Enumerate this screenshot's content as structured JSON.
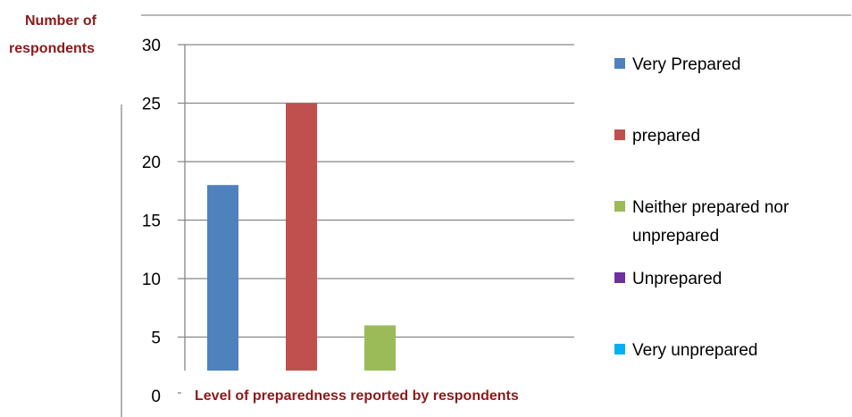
{
  "chart_data": {
    "type": "bar",
    "ylabel_lines": [
      "Number of",
      "respondents"
    ],
    "xlabel": "Level of preparedness reported by respondents",
    "ylim": [
      0,
      30
    ],
    "yticks": [
      0,
      5,
      10,
      15,
      20,
      25,
      30
    ],
    "grid": true,
    "legend_position": "right",
    "series": [
      {
        "name": "Very Prepared",
        "value": 18,
        "color": "#4f81bd"
      },
      {
        "name": "prepared",
        "value": 25,
        "color": "#c0504d"
      },
      {
        "name": "Neither prepared nor unprepared",
        "value": 6,
        "color": "#9bbb59"
      },
      {
        "name": "Unprepared",
        "value": 0,
        "color": "#7030a0"
      },
      {
        "name": "Very unprepared",
        "value": 0,
        "color": "#00b0f0"
      }
    ]
  }
}
